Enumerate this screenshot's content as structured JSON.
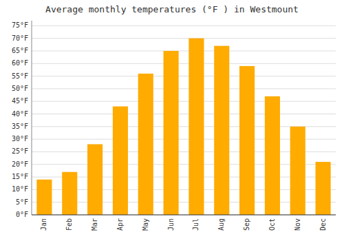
{
  "chart_data": {
    "type": "bar",
    "title": "Average monthly temperatures (°F ) in Westmount",
    "categories": [
      "Jan",
      "Feb",
      "Mar",
      "Apr",
      "May",
      "Jun",
      "Jul",
      "Aug",
      "Sep",
      "Oct",
      "Nov",
      "Dec"
    ],
    "values": [
      14,
      17,
      28,
      43,
      56,
      65,
      70,
      67,
      59,
      47,
      35,
      21
    ],
    "color": "#FFAB00",
    "ylim": [
      0,
      77
    ],
    "yticks": [
      {
        "value": 0,
        "label": "0°F"
      },
      {
        "value": 5,
        "label": "5°F"
      },
      {
        "value": 10,
        "label": "10°F"
      },
      {
        "value": 15,
        "label": "15°F"
      },
      {
        "value": 20,
        "label": "20°F"
      },
      {
        "value": 25,
        "label": "25°F"
      },
      {
        "value": 30,
        "label": "30°F"
      },
      {
        "value": 35,
        "label": "35°F"
      },
      {
        "value": 40,
        "label": "40°F"
      },
      {
        "value": 45,
        "label": "45°F"
      },
      {
        "value": 50,
        "label": "50°F"
      },
      {
        "value": 55,
        "label": "55°F"
      },
      {
        "value": 60,
        "label": "60°F"
      },
      {
        "value": 65,
        "label": "65°F"
      },
      {
        "value": 70,
        "label": "70°F"
      },
      {
        "value": 75,
        "label": "75°F"
      }
    ],
    "grid": true
  }
}
